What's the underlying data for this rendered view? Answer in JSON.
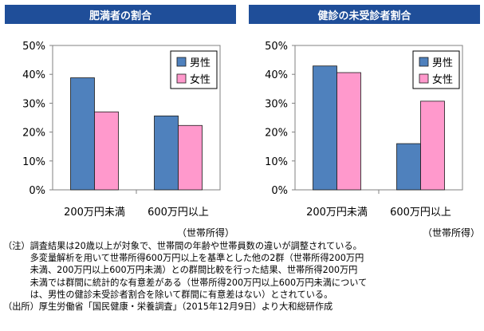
{
  "charts": [
    {
      "header": "肥満者の割合",
      "unit_label": "（世帯所得）",
      "chart_data": {
        "type": "bar",
        "title": "肥満者の割合",
        "categories": [
          "200万円未満",
          "600万円以上"
        ],
        "series": [
          {
            "name": "男性",
            "values": [
              38.8,
              25.6
            ],
            "color": "#4f81bd"
          },
          {
            "name": "女性",
            "values": [
              27.0,
              22.3
            ],
            "color": "#ff99cc"
          }
        ],
        "ylim": [
          0,
          50
        ],
        "yticks": [
          0,
          10,
          20,
          30,
          40,
          50
        ],
        "ytick_labels": [
          "0%",
          "10%",
          "20%",
          "30%",
          "40%",
          "50%"
        ],
        "xlabel": "（世帯所得）",
        "ylabel": "",
        "legend": "top-right",
        "grid": false
      }
    },
    {
      "header": "健診の未受診者割合",
      "unit_label": "（世帯所得）",
      "chart_data": {
        "type": "bar",
        "title": "健診の未受診者割合",
        "categories": [
          "200万円未満",
          "600万円以上"
        ],
        "series": [
          {
            "name": "男性",
            "values": [
              42.9,
              16.0
            ],
            "color": "#4f81bd"
          },
          {
            "name": "女性",
            "values": [
              40.6,
              30.7
            ],
            "color": "#ff99cc"
          }
        ],
        "ylim": [
          0,
          50
        ],
        "yticks": [
          0,
          10,
          20,
          30,
          40,
          50
        ],
        "ytick_labels": [
          "0%",
          "10%",
          "20%",
          "30%",
          "40%",
          "50%"
        ],
        "xlabel": "（世帯所得）",
        "ylabel": "",
        "legend": "top-right",
        "grid": false
      }
    }
  ],
  "notes": {
    "note_label": "（注）",
    "note_text": "調査結果は20歳以上が対象で、世帯間の年齢や世帯員数の違いが調整されている。\n多変量解析を用いて世帯所得600万円以上を基準とした他の2群（世帯所得200万円\n未満、200万円以上600万円未満）との群間比較を行った結果、世帯所得200万円\n未満では群間に統計的な有意差がある（世帯所得200万円以上600万円未満について\nは、男性の健診未受診者割合を除いて群間に有意差はない）とされている。",
    "source_label": "（出所）",
    "source_text": "厚生労働省「国民健康・栄養調査」（2015年12月9日）より大和総研作成"
  }
}
